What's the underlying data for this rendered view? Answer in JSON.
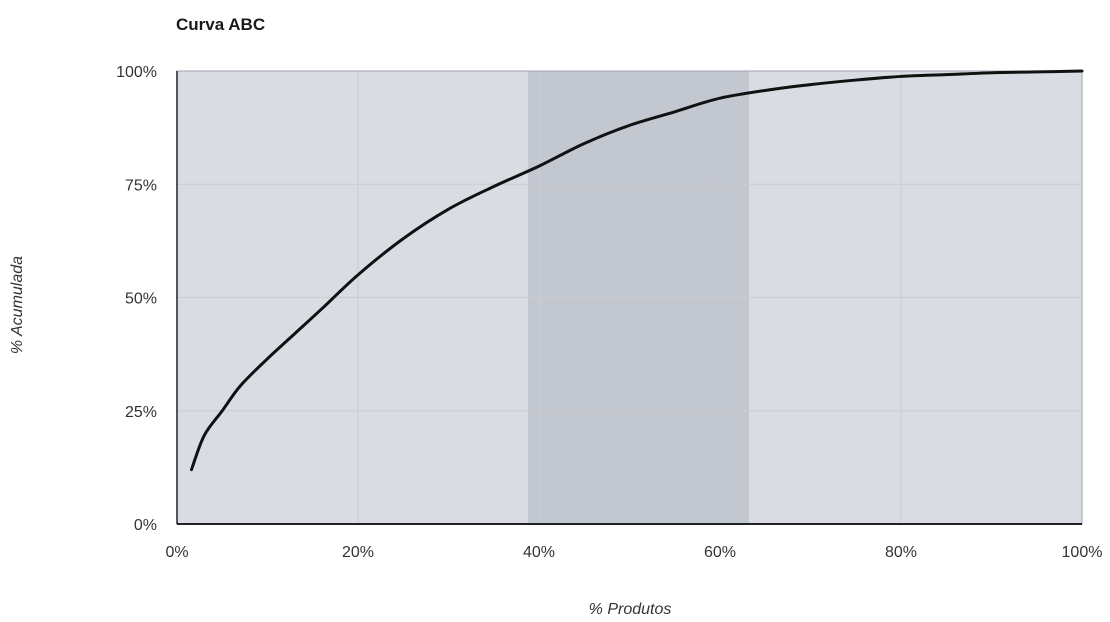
{
  "chart_data": {
    "type": "line",
    "title": "Curva ABC",
    "xlabel": "% Produtos",
    "ylabel": "% Acumulada",
    "xlim": [
      0,
      100
    ],
    "ylim": [
      0,
      100
    ],
    "x_ticks": [
      "0%",
      "20%",
      "40%",
      "60%",
      "80%",
      "100%"
    ],
    "y_ticks": [
      "0%",
      "25%",
      "50%",
      "75%",
      "100%"
    ],
    "grid": true,
    "legend": "none",
    "highlighted_band": [
      38.8,
      63.2
    ],
    "series": [
      {
        "x": [
          1.6,
          3,
          5,
          7,
          10,
          13,
          16,
          20,
          25,
          30,
          35,
          40,
          45,
          50,
          55,
          60,
          66,
          70,
          75,
          80,
          85,
          90,
          95,
          100
        ],
        "y": [
          12,
          19.5,
          25,
          30.5,
          36.5,
          42,
          47.5,
          55,
          63,
          69.5,
          74.5,
          79,
          84,
          88,
          91,
          94,
          96,
          97,
          98,
          98.8,
          99.2,
          99.6,
          99.8,
          100
        ]
      }
    ]
  },
  "colors": {
    "plot_background": "#d9dce3",
    "band": "#c3c7d0",
    "grid": "#c9ccd3",
    "line": "#111111",
    "axis": "#222222"
  }
}
